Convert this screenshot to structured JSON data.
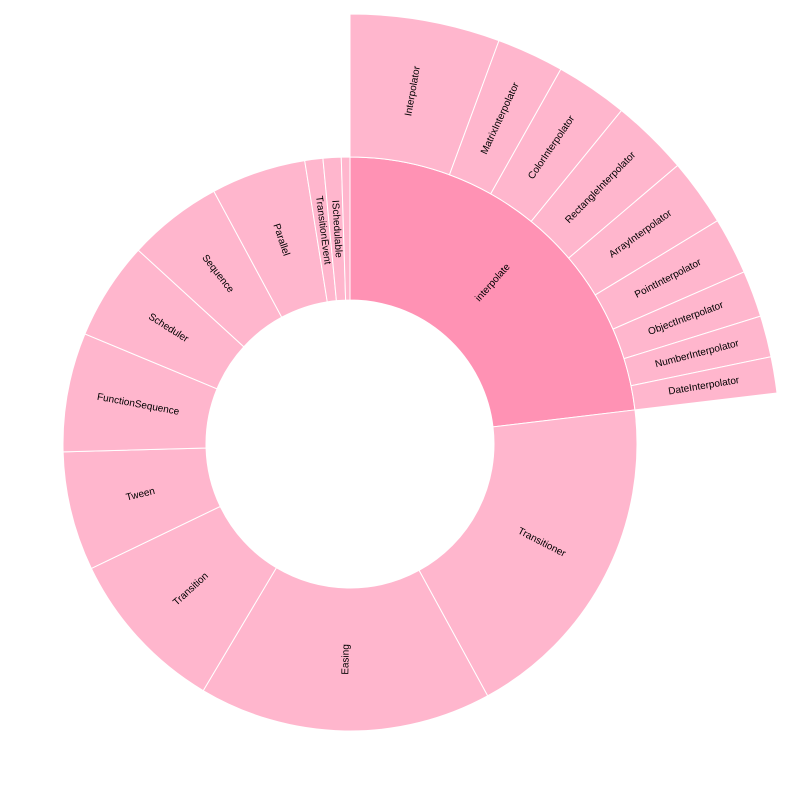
{
  "chart_data": {
    "type": "sunburst",
    "colors": {
      "inner_highlight": "#FF92B4",
      "inner_default": "#FFB6CD",
      "outer_default": "#FFB6CD",
      "stroke": "#ffffff"
    },
    "inner_ring": [
      {
        "name": "interpolate",
        "value": 23.8
      },
      {
        "name": "Transitioner",
        "value": 19.5
      },
      {
        "name": "Easing",
        "value": 17.0
      },
      {
        "name": "Transition",
        "value": 9.6
      },
      {
        "name": "Tween",
        "value": 6.9
      },
      {
        "name": "FunctionSequence",
        "value": 6.9
      },
      {
        "name": "Scheduler",
        "value": 5.7
      },
      {
        "name": "Sequence",
        "value": 5.5
      },
      {
        "name": "Parallel",
        "value": 5.5
      },
      {
        "name": "TransitionEvent",
        "value": 1.05
      },
      {
        "name": "ISchedulable",
        "value": 1.05
      },
      {
        "name": "",
        "value": 0.5
      }
    ],
    "outer_ring": {
      "parent": "interpolate",
      "children": [
        {
          "name": "Interpolator",
          "value": 5.8
        },
        {
          "name": "MatrixInterpolator",
          "value": 2.6
        },
        {
          "name": "ColorInterpolator",
          "value": 2.8
        },
        {
          "name": "RectangleInterpolator",
          "value": 3.0
        },
        {
          "name": "ArrayInterpolator",
          "value": 2.6
        },
        {
          "name": "PointInterpolator",
          "value": 2.2
        },
        {
          "name": "ObjectInterpolator",
          "value": 1.8
        },
        {
          "name": "NumberInterpolator",
          "value": 1.6
        },
        {
          "name": "DateInterpolator",
          "value": 1.4
        }
      ]
    }
  }
}
